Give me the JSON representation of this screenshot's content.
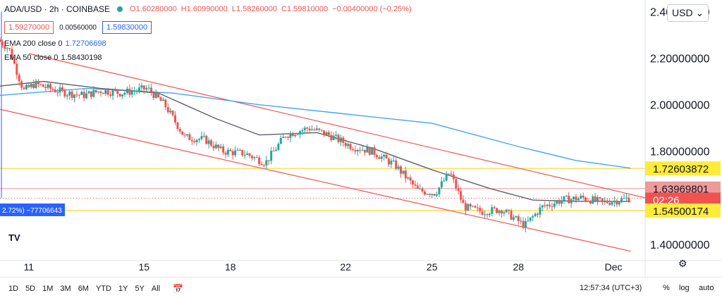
{
  "header": {
    "symbol": "ADA/USD · 2h · COINBASE",
    "open": "O1.60280000",
    "high": "H1.60990000",
    "low": "L1.58260000",
    "close": "C1.59810000",
    "change": "−0.00400000 (−0.25%)"
  },
  "trade": {
    "sell": "1.59270000",
    "spread": "0.00560000",
    "buy": "1.59830000"
  },
  "indicators": [
    {
      "label": "EMA 200 close 0",
      "value": "1.72706698",
      "color": "#2962ff"
    },
    {
      "label": "EMA 50 close 0",
      "value": "1.58430198",
      "color": "#131722"
    }
  ],
  "currency_button": "USD",
  "measure_label": "2.72%) −77706643",
  "price_tags": [
    {
      "text": "1.72603872",
      "bg": "#ffeb3b",
      "fg": "#131722"
    },
    {
      "text": "1.63969801",
      "bg": "#ef9a9a",
      "fg": "#131722"
    },
    {
      "text": "02:26",
      "bg": "#ef5350",
      "fg": "#ffffff"
    },
    {
      "text": "1.54500174",
      "bg": "#ffeb3b",
      "fg": "#131722"
    }
  ],
  "timeframes": [
    "1D",
    "5D",
    "1M",
    "3M",
    "6M",
    "YTD",
    "1Y",
    "5Y",
    "All"
  ],
  "clock": "12:57:34 (UTC+3)",
  "bottom_right": {
    "pct": "%",
    "log": "log",
    "auto": "auto"
  },
  "colors": {
    "up": "#26a69a",
    "down": "#ef5350",
    "ema200": "#42a5f5",
    "ema50": "#5d606b",
    "channel": "#ef5350",
    "hline": "#fdd835"
  },
  "chart_data": {
    "type": "candlestick",
    "title": "ADA/USD · 2h · COINBASE",
    "ylim": [
      1.33,
      2.45
    ],
    "yticks": [
      "2.40000000",
      "2.20000000",
      "2.00000000",
      "1.80000000",
      "1.60000000",
      "1.40000000"
    ],
    "ytick_values": [
      2.4,
      2.2,
      2.0,
      1.8,
      1.6,
      1.4
    ],
    "x_labels": [
      "11",
      "15",
      "18",
      "22",
      "25",
      "28",
      "Dec"
    ],
    "x_label_days": [
      11,
      15,
      18,
      22,
      25,
      28,
      31.3
    ],
    "xlim": [
      10.0,
      32.4
    ],
    "price_points": [
      [
        10.0,
        2.28
      ],
      [
        10.4,
        2.24
      ],
      [
        10.9,
        2.06
      ],
      [
        11.3,
        2.09
      ],
      [
        11.8,
        2.07
      ],
      [
        12.4,
        2.05
      ],
      [
        13.0,
        2.04
      ],
      [
        13.6,
        2.06
      ],
      [
        14.3,
        2.05
      ],
      [
        15.2,
        2.07
      ],
      [
        15.8,
        2.0
      ],
      [
        16.5,
        1.86
      ],
      [
        17.2,
        1.85
      ],
      [
        17.8,
        1.8
      ],
      [
        18.6,
        1.79
      ],
      [
        19.3,
        1.75
      ],
      [
        20.0,
        1.87
      ],
      [
        20.8,
        1.9
      ],
      [
        21.5,
        1.87
      ],
      [
        22.3,
        1.82
      ],
      [
        23.0,
        1.8
      ],
      [
        23.8,
        1.74
      ],
      [
        24.6,
        1.63
      ],
      [
        25.2,
        1.62
      ],
      [
        25.7,
        1.71
      ],
      [
        26.2,
        1.56
      ],
      [
        26.8,
        1.54
      ],
      [
        27.5,
        1.55
      ],
      [
        28.3,
        1.48
      ],
      [
        28.9,
        1.56
      ],
      [
        29.6,
        1.59
      ],
      [
        30.3,
        1.6
      ],
      [
        31.0,
        1.58
      ],
      [
        31.6,
        1.59
      ],
      [
        31.9,
        1.598
      ]
    ],
    "ema200": [
      [
        10.0,
        2.04
      ],
      [
        13.0,
        2.07
      ],
      [
        16.0,
        2.05
      ],
      [
        19.0,
        2.0
      ],
      [
        22.0,
        1.96
      ],
      [
        25.0,
        1.92
      ],
      [
        28.0,
        1.82
      ],
      [
        30.0,
        1.76
      ],
      [
        31.9,
        1.727
      ]
    ],
    "ema50": [
      [
        10.0,
        2.08
      ],
      [
        11.5,
        2.1
      ],
      [
        13.5,
        2.07
      ],
      [
        15.5,
        2.05
      ],
      [
        17.5,
        1.94
      ],
      [
        19.0,
        1.87
      ],
      [
        21.0,
        1.88
      ],
      [
        23.0,
        1.81
      ],
      [
        25.0,
        1.72
      ],
      [
        27.0,
        1.64
      ],
      [
        28.5,
        1.59
      ],
      [
        30.0,
        1.585
      ],
      [
        31.9,
        1.584
      ]
    ],
    "channel_upper": [
      [
        11.0,
        2.22
      ],
      [
        32.4,
        1.6
      ]
    ],
    "channel_lower": [
      [
        10.0,
        1.98
      ],
      [
        31.9,
        1.37
      ]
    ],
    "hlines": [
      1.726,
      1.545
    ],
    "dotted_close": 1.598,
    "pink_hline": 1.6397
  }
}
